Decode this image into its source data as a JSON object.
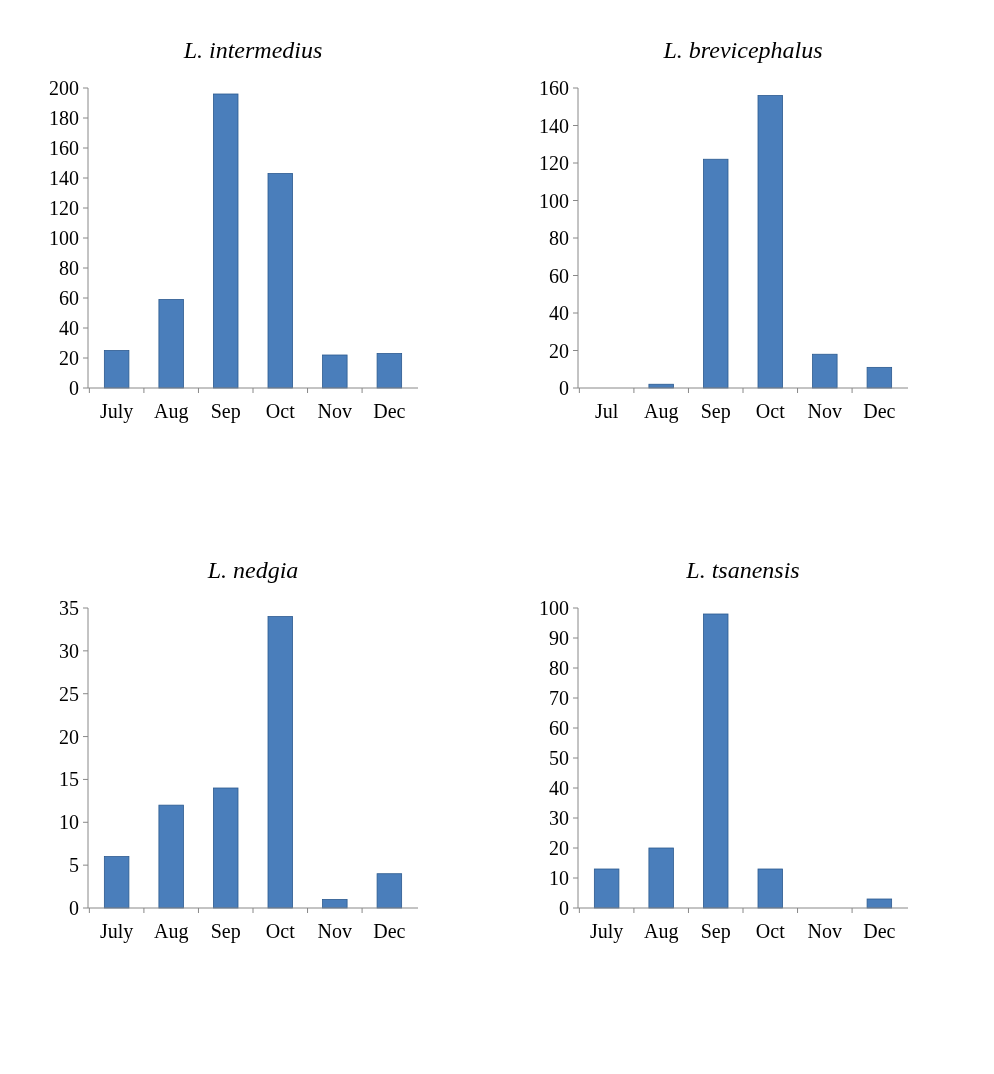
{
  "chart_data": [
    {
      "type": "bar",
      "title": "L. intermedius",
      "categories": [
        "July",
        "Aug",
        "Sep",
        "Oct",
        "Nov",
        "Dec"
      ],
      "values": [
        25,
        59,
        196,
        143,
        22,
        23
      ],
      "color": "#4a7ebb",
      "ylim": [
        0,
        200
      ],
      "yticks": [
        0,
        20,
        40,
        60,
        80,
        100,
        120,
        140,
        160,
        180,
        200
      ],
      "grid": false
    },
    {
      "type": "bar",
      "title": "L. brevicephalus",
      "categories": [
        "Jul",
        "Aug",
        "Sep",
        "Oct",
        "Nov",
        "Dec"
      ],
      "values": [
        0,
        2,
        122,
        156,
        18,
        11
      ],
      "color": "#4a7ebb",
      "ylim": [
        0,
        160
      ],
      "yticks": [
        0,
        20,
        40,
        60,
        80,
        100,
        120,
        140,
        160
      ],
      "grid": false
    },
    {
      "type": "bar",
      "title": "L. nedgia",
      "categories": [
        "July",
        "Aug",
        "Sep",
        "Oct",
        "Nov",
        "Dec"
      ],
      "values": [
        6,
        12,
        14,
        34,
        1,
        4
      ],
      "color": "#4a7ebb",
      "ylim": [
        0,
        35
      ],
      "yticks": [
        0,
        5,
        10,
        15,
        20,
        25,
        30,
        35
      ],
      "grid": false
    },
    {
      "type": "bar",
      "title": "L. tsanensis",
      "categories": [
        "July",
        "Aug",
        "Sep",
        "Oct",
        "Nov",
        "Dec"
      ],
      "values": [
        13,
        20,
        98,
        13,
        0,
        3
      ],
      "color": "#4a7ebb",
      "ylim": [
        0,
        100
      ],
      "yticks": [
        0,
        10,
        20,
        30,
        40,
        50,
        60,
        70,
        80,
        90,
        100
      ],
      "grid": false
    }
  ]
}
